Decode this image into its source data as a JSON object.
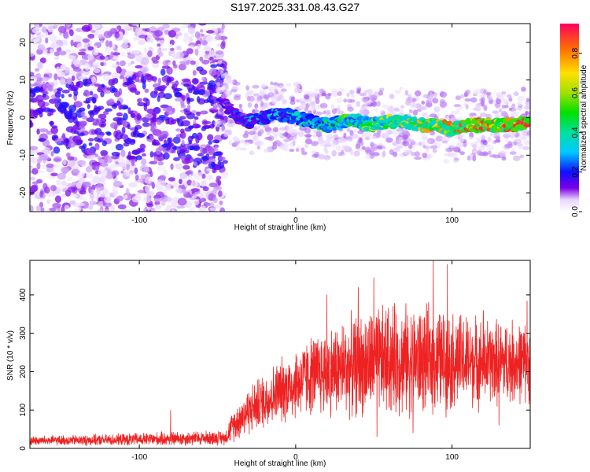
{
  "title": "S197.2025.331.08.43.G27",
  "colors": {
    "spectrogram_base": "#7a00e6",
    "snr_line": "#ee2222",
    "axis": "#000000"
  },
  "chart_data": [
    {
      "type": "heatmap",
      "name": "spectrogram",
      "xlabel": "Height of straight line (km)",
      "ylabel": "Frequency (Hz)",
      "xlim": [
        -170,
        150
      ],
      "ylim": [
        -25,
        25
      ],
      "xticks": [
        -100,
        0,
        100
      ],
      "xtick_labels": [
        "-100",
        "0",
        "100"
      ],
      "yticks": [
        -20,
        -10,
        0,
        10,
        20
      ],
      "ytick_labels": [
        "-20",
        "-10",
        "0",
        "10",
        "20"
      ],
      "ridge": [
        {
          "x": -50,
          "y": 6
        },
        {
          "x": -40,
          "y": 1
        },
        {
          "x": -30,
          "y": -1
        },
        {
          "x": -20,
          "y": 0
        },
        {
          "x": -10,
          "y": 1
        },
        {
          "x": 0,
          "y": 0
        },
        {
          "x": 10,
          "y": -1
        },
        {
          "x": 20,
          "y": -2
        },
        {
          "x": 30,
          "y": -1
        },
        {
          "x": 40,
          "y": -1
        },
        {
          "x": 50,
          "y": -2
        },
        {
          "x": 60,
          "y": -1
        },
        {
          "x": 70,
          "y": -1
        },
        {
          "x": 80,
          "y": -2
        },
        {
          "x": 90,
          "y": -2
        },
        {
          "x": 100,
          "y": -3
        },
        {
          "x": 110,
          "y": -2
        },
        {
          "x": 120,
          "y": -2
        },
        {
          "x": 130,
          "y": -2
        },
        {
          "x": 140,
          "y": -2
        },
        {
          "x": 150,
          "y": -1
        }
      ],
      "colorbar": {
        "label": "Normalized spectral amplitude",
        "range": [
          0,
          0.95
        ],
        "ticks": [
          0,
          0.2,
          0.4,
          0.6,
          0.8
        ],
        "tick_labels": [
          "0.0",
          "0.2",
          "0.4",
          "0.6",
          "0.8"
        ],
        "stops": [
          {
            "v": 0.0,
            "c": "#ffffff"
          },
          {
            "v": 0.06,
            "c": "#e8d6ff"
          },
          {
            "v": 0.12,
            "c": "#7a00e6"
          },
          {
            "v": 0.2,
            "c": "#1010ff"
          },
          {
            "v": 0.3,
            "c": "#00c8ff"
          },
          {
            "v": 0.4,
            "c": "#00e0a0"
          },
          {
            "v": 0.5,
            "c": "#00e000"
          },
          {
            "v": 0.6,
            "c": "#a0e000"
          },
          {
            "v": 0.7,
            "c": "#ffe000"
          },
          {
            "v": 0.82,
            "c": "#ff7000"
          },
          {
            "v": 0.95,
            "c": "#ff0060"
          }
        ]
      }
    },
    {
      "type": "line",
      "name": "snr",
      "xlabel": "Height of straight line (km)",
      "ylabel": "SNR (10 * v/v)",
      "xlim": [
        -170,
        150
      ],
      "ylim": [
        0,
        490
      ],
      "xticks": [
        -100,
        0,
        100
      ],
      "xtick_labels": [
        "-100",
        "0",
        "100"
      ],
      "yticks": [
        0,
        100,
        200,
        300,
        400
      ],
      "ytick_labels": [
        "0",
        "100",
        "200",
        "300",
        "400"
      ],
      "series_color": "#ee2222",
      "envelope": [
        {
          "x": -170,
          "mean": 20,
          "spread": 12
        },
        {
          "x": -120,
          "mean": 22,
          "spread": 14
        },
        {
          "x": -80,
          "mean": 25,
          "spread": 18
        },
        {
          "x": -45,
          "mean": 28,
          "spread": 18
        },
        {
          "x": -40,
          "mean": 60,
          "spread": 40
        },
        {
          "x": -30,
          "mean": 100,
          "spread": 60
        },
        {
          "x": -10,
          "mean": 150,
          "spread": 80
        },
        {
          "x": 10,
          "mean": 190,
          "spread": 100
        },
        {
          "x": 30,
          "mean": 210,
          "spread": 120
        },
        {
          "x": 60,
          "mean": 230,
          "spread": 140
        },
        {
          "x": 90,
          "mean": 230,
          "spread": 130
        },
        {
          "x": 120,
          "mean": 225,
          "spread": 110
        },
        {
          "x": 150,
          "mean": 225,
          "spread": 100
        }
      ],
      "peaks": [
        {
          "x": -80,
          "y": 100
        },
        {
          "x": 20,
          "y": 400
        },
        {
          "x": 40,
          "y": 420
        },
        {
          "x": 50,
          "y": 445
        },
        {
          "x": 52,
          "y": 30
        },
        {
          "x": 88,
          "y": 490
        },
        {
          "x": 97,
          "y": 480
        },
        {
          "x": 75,
          "y": 40
        },
        {
          "x": 120,
          "y": 360
        },
        {
          "x": 130,
          "y": 60
        },
        {
          "x": 148,
          "y": 385
        }
      ]
    }
  ]
}
